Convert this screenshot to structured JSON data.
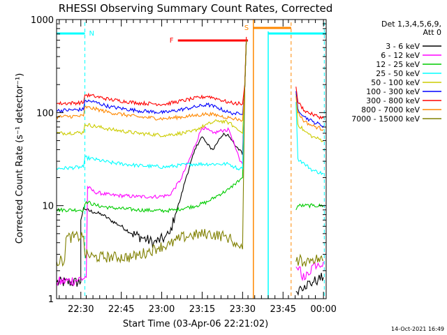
{
  "chart_data": {
    "type": "line",
    "title": "RHESSI Observing Summary Count Rates, Corrected",
    "xlabel": "Start Time (03-Apr-06 22:21:02)",
    "ylabel": "Corrected Count Rate (s⁻¹ detector⁻¹)",
    "x_unit": "minutes after 22:21:02",
    "xlim": [
      0,
      100
    ],
    "ylim": [
      1,
      1000
    ],
    "yscale": "log",
    "x_ticks": [
      {
        "x": 9,
        "label": "22:30"
      },
      {
        "x": 24,
        "label": "22:45"
      },
      {
        "x": 39,
        "label": "23:00"
      },
      {
        "x": 54,
        "label": "23:15"
      },
      {
        "x": 69,
        "label": "23:30"
      },
      {
        "x": 84,
        "label": "23:45"
      },
      {
        "x": 99,
        "label": "00:00"
      }
    ],
    "y_ticks": [
      {
        "y": 1,
        "label": "1"
      },
      {
        "y": 10,
        "label": "10"
      },
      {
        "y": 100,
        "label": "100"
      },
      {
        "y": 1000,
        "label": "1000"
      }
    ],
    "legend_header": [
      "Det 1,3,4,5,6,9,",
      "Att 0"
    ],
    "legend_position": "right",
    "series": [
      {
        "name": "3 - 6 keV",
        "color": "#000000",
        "x": [
          0,
          9,
          9,
          10,
          11,
          14,
          17,
          20,
          24,
          28,
          32,
          36,
          40,
          42,
          44,
          46,
          48,
          52,
          54,
          56,
          58,
          60,
          62,
          64,
          66,
          68,
          69,
          69.8,
          70.4,
          71,
          88,
          88.8,
          90,
          92,
          95,
          97,
          99
        ],
        "y": [
          1.5,
          1.5,
          7,
          9.5,
          9,
          8.5,
          8,
          7,
          6,
          5,
          4.5,
          4,
          4.5,
          5,
          8,
          12,
          20,
          45,
          55,
          45,
          40,
          50,
          60,
          55,
          45,
          40,
          35,
          180,
          600,
          null,
          null,
          1.2,
          1.3,
          1.4,
          1.5,
          1.6,
          1.7
        ]
      },
      {
        "name": "6 - 12 keV",
        "color": "#ff00ff",
        "x": [
          0,
          8,
          11,
          11.5,
          14,
          20,
          30,
          38,
          42,
          46,
          50,
          54,
          58,
          62,
          64,
          66,
          68,
          69,
          69.8,
          70.4,
          71,
          88,
          88.8,
          90,
          92,
          95,
          97,
          99
        ],
        "y": [
          1.5,
          1.6,
          1.7,
          16,
          14,
          13,
          12.5,
          12.5,
          13,
          19,
          35,
          70,
          60,
          65,
          65,
          45,
          30,
          28,
          180,
          600,
          null,
          null,
          2.2,
          2.2,
          1.6,
          2.3,
          2.4,
          2.5
        ]
      },
      {
        "name": "12 - 25 keV",
        "color": "#00cc00",
        "x": [
          0,
          10,
          11,
          15,
          20,
          30,
          40,
          44,
          48,
          52,
          56,
          60,
          64,
          66,
          68,
          69,
          69.8,
          70.4,
          71,
          88,
          88.8,
          89.5,
          92,
          95,
          99
        ],
        "y": [
          9,
          9,
          11,
          10,
          9.5,
          9,
          8.8,
          9,
          9.5,
          10,
          11,
          13,
          15,
          17,
          19,
          20,
          180,
          600,
          null,
          null,
          9,
          10,
          10,
          10,
          10
        ]
      },
      {
        "name": "25 - 50 keV",
        "color": "#00ffff",
        "x": [
          0,
          10,
          10.5,
          20,
          30,
          40,
          50,
          60,
          64,
          66,
          68,
          69,
          69.8,
          70.4,
          71,
          88,
          88.8,
          89.5,
          92,
          95,
          99
        ],
        "y": [
          25,
          26,
          33,
          29,
          27,
          26,
          28,
          28,
          28,
          26,
          25,
          25,
          180,
          600,
          null,
          null,
          130,
          32,
          28,
          24,
          22
        ]
      },
      {
        "name": "50 - 100 keV",
        "color": "#cccc00",
        "x": [
          0,
          10,
          10.5,
          20,
          30,
          40,
          50,
          56,
          60,
          64,
          66,
          68,
          69,
          69.8,
          70.4,
          71,
          88,
          88.8,
          89.5,
          92,
          95,
          99
        ],
        "y": [
          60,
          61,
          75,
          66,
          60,
          57,
          62,
          75,
          82,
          78,
          70,
          63,
          60,
          180,
          600,
          null,
          null,
          160,
          75,
          63,
          55,
          50
        ]
      },
      {
        "name": "100 - 300 keV",
        "color": "#0000ff",
        "x": [
          0,
          10,
          10.5,
          14,
          20,
          30,
          40,
          50,
          56,
          60,
          64,
          66,
          68,
          69,
          69.8,
          70.4,
          71,
          88,
          88.8,
          89.5,
          92,
          95,
          99
        ],
        "y": [
          105,
          108,
          135,
          130,
          115,
          105,
          100,
          113,
          122,
          112,
          100,
          98,
          96,
          95,
          180,
          600,
          null,
          null,
          170,
          110,
          90,
          80,
          72
        ]
      },
      {
        "name": "300 - 800 keV",
        "color": "#ff0000",
        "x": [
          0,
          10,
          10.5,
          14,
          20,
          30,
          40,
          50,
          56,
          60,
          64,
          66,
          68,
          69,
          69.8,
          70.4,
          71,
          88,
          88.8,
          89.5,
          92,
          95,
          99
        ],
        "y": [
          125,
          128,
          155,
          150,
          138,
          127,
          123,
          140,
          150,
          140,
          128,
          126,
          125,
          124,
          200,
          650,
          null,
          null,
          190,
          130,
          105,
          95,
          87
        ]
      },
      {
        "name": "800 - 7000 keV",
        "color": "#ff8800",
        "x": [
          0,
          10,
          10.5,
          14,
          20,
          30,
          40,
          50,
          56,
          60,
          64,
          66,
          68,
          69,
          69.8,
          70.4,
          71,
          88,
          88.8,
          89.5,
          92,
          95,
          99
        ],
        "y": [
          90,
          92,
          115,
          110,
          100,
          90,
          86,
          92,
          97,
          93,
          88,
          86,
          84,
          83,
          180,
          600,
          null,
          null,
          150,
          100,
          80,
          72,
          66
        ]
      },
      {
        "name": "7000 - 15000 keV",
        "color": "#808000",
        "x": [
          0,
          3,
          3.5,
          10,
          10.5,
          14,
          20,
          28,
          34,
          38,
          42,
          46,
          50,
          56,
          62,
          64,
          66,
          68,
          69,
          69.8,
          70.4,
          71,
          88,
          88.8,
          90,
          92,
          95,
          99
        ],
        "y": [
          2.5,
          2.6,
          4.5,
          4.7,
          3,
          2.8,
          2.8,
          2.8,
          3.2,
          3.6,
          3.8,
          4.5,
          4.8,
          5.0,
          4.7,
          4.5,
          4,
          3.5,
          3.4,
          180,
          600,
          null,
          null,
          2.5,
          2.6,
          2.5,
          2.7,
          2.6
        ]
      }
    ],
    "markers": [
      {
        "label": "N",
        "color": "#00ffff"
      },
      {
        "label": "F",
        "color": "#ff0000"
      },
      {
        "label": "S",
        "color": "#ff8800"
      }
    ],
    "footnote": "14-Oct-2021 16:49"
  }
}
